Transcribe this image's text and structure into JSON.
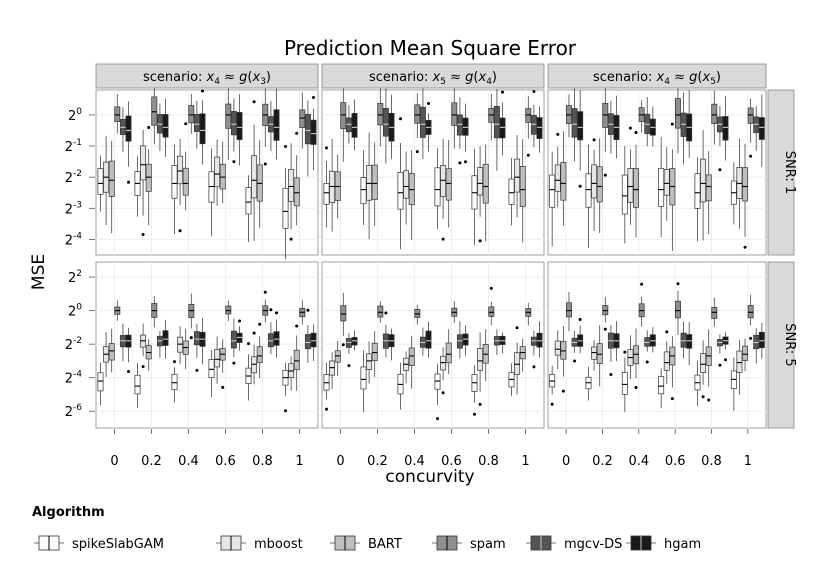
{
  "chart_data": {
    "type": "box",
    "title": "Prediction Mean Square Error",
    "xlabel": "concurvity",
    "ylabel": "MSE",
    "x_ticks": [
      "0",
      "0.2",
      "0.4",
      "0.6",
      "0.8",
      "1"
    ],
    "y_scale": "log2",
    "legend": {
      "title": "Algorithm",
      "position": "bottom",
      "entries": [
        {
          "name": "spikeSlabGAM",
          "color": "#ffffff"
        },
        {
          "name": "mboost",
          "color": "#e6e6e6"
        },
        {
          "name": "BART",
          "color": "#bfbfbf"
        },
        {
          "name": "spam",
          "color": "#8f8f8f"
        },
        {
          "name": "mgcv-DS",
          "color": "#555555"
        },
        {
          "name": "hgam",
          "color": "#1a1a1a"
        }
      ]
    },
    "column_strips": [
      {
        "pre": "scenario: ",
        "math": [
          [
            "x",
            "i"
          ],
          [
            "4",
            "sub"
          ],
          [
            " ≈ ",
            "n"
          ],
          [
            "g",
            "i"
          ],
          [
            "(",
            "n"
          ],
          [
            "x",
            "i"
          ],
          [
            "3",
            "sub"
          ],
          [
            ")",
            "n"
          ]
        ]
      },
      {
        "pre": "scenario: ",
        "math": [
          [
            "x",
            "i"
          ],
          [
            "5",
            "sub"
          ],
          [
            " ≈ ",
            "n"
          ],
          [
            "g",
            "i"
          ],
          [
            "(",
            "n"
          ],
          [
            "x",
            "i"
          ],
          [
            "4",
            "sub"
          ],
          [
            ")",
            "n"
          ]
        ]
      },
      {
        "pre": "scenario: ",
        "math": [
          [
            "x",
            "i"
          ],
          [
            "4",
            "sub"
          ],
          [
            " ≈ ",
            "n"
          ],
          [
            "g",
            "i"
          ],
          [
            "(",
            "n"
          ],
          [
            "x",
            "i"
          ],
          [
            "5",
            "sub"
          ],
          [
            ")",
            "n"
          ]
        ]
      }
    ],
    "row_strips": [
      "SNR: 1",
      "SNR: 5"
    ],
    "rows": [
      {
        "y_ticks": [
          -4,
          -3,
          -2,
          -1,
          0
        ],
        "y_ticks_text": [
          "2^-4",
          "2^-3",
          "2^-2",
          "2^-1",
          "2^0"
        ],
        "ylim_log2": [
          -4.5,
          0.8
        ]
      },
      {
        "y_ticks": [
          -6,
          -4,
          -2,
          0,
          2
        ],
        "y_ticks_text": [
          "2^-6",
          "2^-4",
          "2^-2",
          "2^0",
          "2^2"
        ],
        "ylim_log2": [
          -7.0,
          2.9
        ]
      }
    ],
    "panels": [
      {
        "row": 0,
        "col": 0,
        "medians": [
          [
            -2.2,
            -2.2,
            -2.2,
            -2.3,
            -2.8,
            -3.1
          ],
          [
            -2.0,
            -1.6,
            -1.8,
            -1.9,
            -2.1,
            -2.3
          ],
          [
            -2.1,
            -2.0,
            -2.2,
            -2.0,
            -2.2,
            -2.5
          ],
          [
            0.0,
            0.1,
            0.0,
            0.0,
            0.0,
            -0.1
          ],
          [
            -0.4,
            -0.3,
            -0.3,
            -0.3,
            -0.3,
            -0.5
          ],
          [
            -0.5,
            -0.4,
            -0.5,
            -0.4,
            -0.4,
            -0.6
          ]
        ]
      },
      {
        "row": 0,
        "col": 1,
        "medians": [
          [
            -2.5,
            -2.4,
            -2.5,
            -2.4,
            -2.5,
            -2.5
          ],
          [
            -2.3,
            -2.2,
            -2.3,
            -2.1,
            -2.2,
            -2.0
          ],
          [
            -2.3,
            -2.2,
            -2.4,
            -2.2,
            -2.3,
            -2.4
          ],
          [
            0.0,
            0.0,
            0.0,
            0.0,
            0.0,
            0.0
          ],
          [
            -0.3,
            -0.3,
            -0.3,
            -0.3,
            -0.3,
            -0.3
          ],
          [
            -0.4,
            -0.4,
            -0.4,
            -0.4,
            -0.4,
            -0.4
          ]
        ]
      },
      {
        "row": 0,
        "col": 2,
        "medians": [
          [
            -2.4,
            -2.4,
            -2.6,
            -2.4,
            -2.5,
            -2.5
          ],
          [
            -2.1,
            -2.2,
            -2.3,
            -2.2,
            -2.2,
            -2.2
          ],
          [
            -2.2,
            -2.3,
            -2.4,
            -2.3,
            -2.3,
            -2.3
          ],
          [
            0.0,
            0.0,
            0.0,
            0.0,
            0.0,
            0.0
          ],
          [
            -0.3,
            -0.3,
            -0.3,
            -0.3,
            -0.3,
            -0.3
          ],
          [
            -0.4,
            -0.4,
            -0.4,
            -0.4,
            -0.4,
            -0.4
          ]
        ]
      },
      {
        "row": 1,
        "col": 0,
        "medians": [
          [
            -4.2,
            -4.5,
            -4.3,
            -3.5,
            -3.9,
            -4.0
          ],
          [
            -2.6,
            -1.8,
            -2.0,
            -2.9,
            -3.2,
            -3.6
          ],
          [
            -2.4,
            -2.5,
            -2.2,
            -2.6,
            -2.7,
            -3.0
          ],
          [
            0.0,
            0.0,
            0.0,
            0.0,
            0.0,
            -0.1
          ],
          [
            -1.8,
            -1.8,
            -1.7,
            -1.8,
            -1.8,
            -1.9
          ],
          [
            -1.8,
            -1.7,
            -1.7,
            -1.6,
            -1.7,
            -1.8
          ]
        ]
      },
      {
        "row": 1,
        "col": 1,
        "medians": [
          [
            -4.3,
            -4.1,
            -4.4,
            -4.2,
            -4.3,
            -4.1
          ],
          [
            -3.4,
            -3.0,
            -3.2,
            -3.1,
            -3.0,
            -3.2
          ],
          [
            -2.7,
            -2.5,
            -2.7,
            -2.6,
            -2.6,
            -2.5
          ],
          [
            -0.2,
            -0.1,
            -0.2,
            -0.1,
            -0.1,
            -0.1
          ],
          [
            -1.9,
            -1.8,
            -1.9,
            -1.8,
            -1.8,
            -1.8
          ],
          [
            -1.8,
            -1.8,
            -1.8,
            -1.7,
            -1.8,
            -1.8
          ]
        ]
      },
      {
        "row": 1,
        "col": 2,
        "medians": [
          [
            -4.2,
            -4.3,
            -4.4,
            -4.5,
            -4.3,
            -4.1
          ],
          [
            -2.3,
            -2.5,
            -2.8,
            -3.1,
            -3.2,
            -3.1
          ],
          [
            -2.4,
            -2.6,
            -2.6,
            -2.7,
            -2.7,
            -2.6
          ],
          [
            0.0,
            0.0,
            0.0,
            0.0,
            -0.1,
            -0.1
          ],
          [
            -1.9,
            -1.8,
            -1.9,
            -1.8,
            -1.9,
            -1.9
          ],
          [
            -1.8,
            -1.8,
            -1.8,
            -1.8,
            -1.8,
            -1.8
          ]
        ]
      }
    ]
  }
}
